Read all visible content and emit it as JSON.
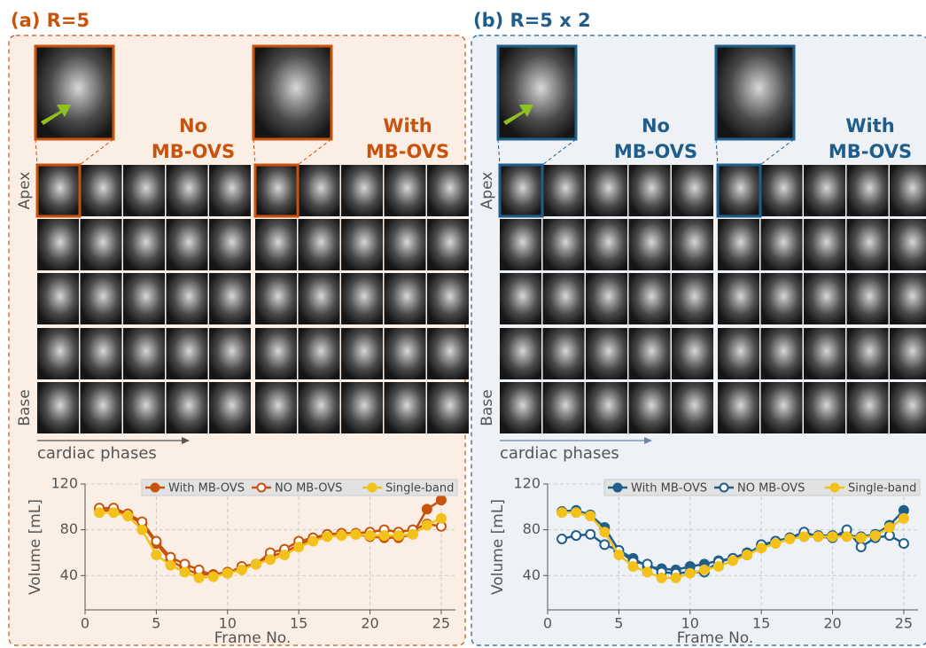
{
  "panels": [
    {
      "label": "(a) R=5",
      "color": "#c8530e",
      "background": "#fbeee4",
      "no_text": [
        "No",
        "MB-OVS"
      ],
      "with_text": [
        "With",
        "MB-OVS"
      ],
      "apex": "Apex",
      "base": "Base",
      "phases": "cardiac phases"
    },
    {
      "label": "(b) R=5 x 2",
      "color": "#1f5e8a",
      "background": "#eef1f6",
      "no_text": [
        "No",
        "MB-OVS"
      ],
      "with_text": [
        "With",
        "MB-OVS"
      ],
      "apex": "Apex",
      "base": "Base",
      "phases": "cardiac phases"
    }
  ],
  "chart_data": [
    {
      "type": "line",
      "xlabel": "Frame No.",
      "ylabel": "Volume [mL]",
      "x": [
        1,
        2,
        3,
        4,
        5,
        6,
        7,
        8,
        9,
        10,
        11,
        12,
        13,
        14,
        15,
        16,
        17,
        18,
        19,
        20,
        21,
        22,
        23,
        24,
        25
      ],
      "xlim": [
        0,
        26
      ],
      "ylim": [
        10,
        120
      ],
      "xticks": [
        0,
        5,
        10,
        15,
        20,
        25
      ],
      "yticks": [
        40,
        80,
        120
      ],
      "grid": true,
      "series": [
        {
          "name": "With MB-OVS",
          "color": "#c8530e",
          "filled": true,
          "values": [
            97,
            97,
            93,
            85,
            68,
            53,
            46,
            41,
            41,
            43,
            46,
            50,
            57,
            60,
            67,
            72,
            75,
            76,
            76,
            74,
            73,
            73,
            76,
            98,
            106
          ]
        },
        {
          "name": "NO MB-OVS",
          "color": "#c8530e",
          "filled": false,
          "values": [
            99,
            99,
            94,
            87,
            70,
            56,
            50,
            45,
            40,
            42,
            48,
            50,
            60,
            63,
            70,
            73,
            76,
            77,
            77,
            78,
            80,
            78,
            80,
            85,
            83
          ]
        },
        {
          "name": "Single-band",
          "color": "#f2c21b",
          "filled": true,
          "values": [
            95,
            95,
            92,
            80,
            58,
            49,
            43,
            38,
            39,
            42,
            45,
            50,
            54,
            58,
            65,
            70,
            74,
            75,
            76,
            75,
            75,
            75,
            76,
            84,
            90
          ]
        }
      ]
    },
    {
      "type": "line",
      "xlabel": "Frame No.",
      "ylabel": "Volume [mL]",
      "x": [
        1,
        2,
        3,
        4,
        5,
        6,
        7,
        8,
        9,
        10,
        11,
        12,
        13,
        14,
        15,
        16,
        17,
        18,
        19,
        20,
        21,
        22,
        23,
        24,
        25
      ],
      "xlim": [
        0,
        26
      ],
      "ylim": [
        10,
        120
      ],
      "xticks": [
        0,
        5,
        10,
        15,
        20,
        25
      ],
      "yticks": [
        40,
        80,
        120
      ],
      "grid": true,
      "series": [
        {
          "name": "With MB-OVS",
          "color": "#1f5e8a",
          "filled": true,
          "values": [
            96,
            97,
            93,
            82,
            62,
            55,
            48,
            46,
            45,
            48,
            50,
            53,
            55,
            60,
            65,
            70,
            73,
            74,
            75,
            75,
            75,
            74,
            76,
            84,
            97
          ]
        },
        {
          "name": "NO MB-OVS",
          "color": "#1f5e8a",
          "filled": false,
          "values": [
            72,
            75,
            76,
            67,
            62,
            52,
            50,
            43,
            42,
            43,
            43,
            52,
            55,
            58,
            67,
            70,
            73,
            78,
            74,
            73,
            80,
            65,
            73,
            75,
            68
          ]
        },
        {
          "name": "Single-band",
          "color": "#f2c21b",
          "filled": true,
          "values": [
            95,
            95,
            92,
            78,
            58,
            48,
            43,
            38,
            38,
            42,
            45,
            48,
            53,
            58,
            64,
            68,
            72,
            74,
            74,
            74,
            74,
            73,
            75,
            82,
            90
          ]
        }
      ]
    }
  ]
}
